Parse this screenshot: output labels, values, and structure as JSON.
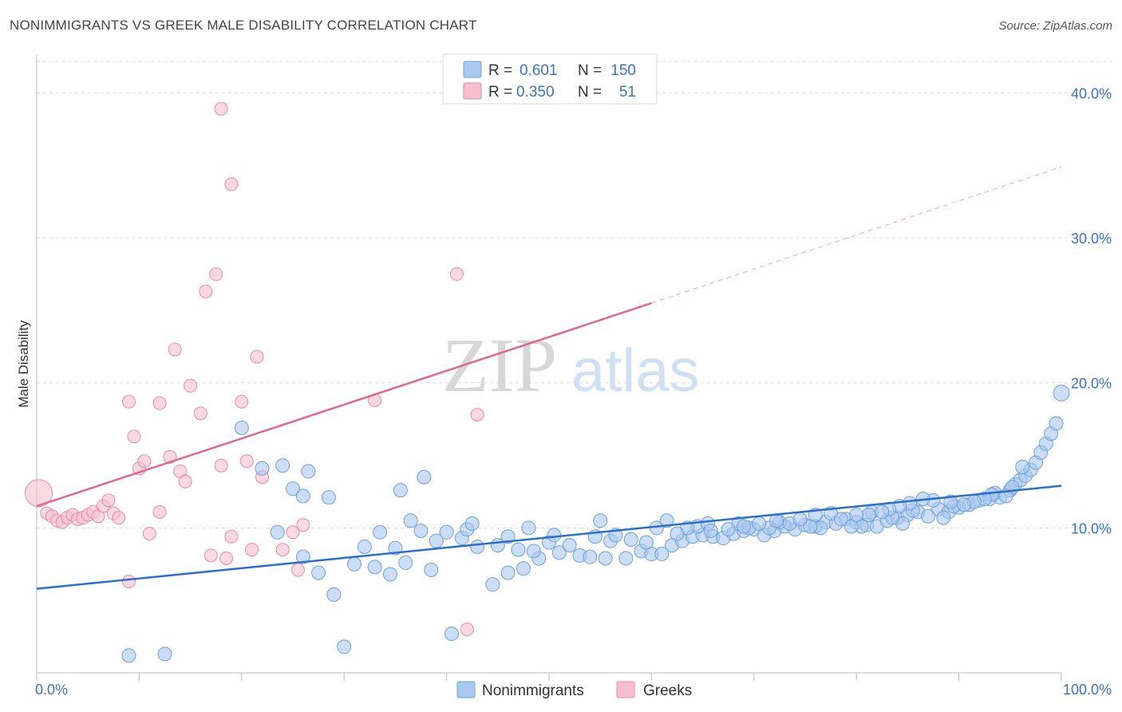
{
  "title": "NONIMMIGRANTS VS GREEK MALE DISABILITY CORRELATION CHART",
  "source": "Source: ZipAtlas.com",
  "watermark": {
    "zip": "ZIP",
    "atlas": "atlas"
  },
  "legend_top": [
    {
      "r_label": "R =",
      "r_value": "0.601",
      "n_label": "N =",
      "n_value": "150"
    },
    {
      "r_label": "R =",
      "r_value": "0.350",
      "n_label": "N =",
      "n_value": "51"
    }
  ],
  "colors": {
    "nonimmigrants_fill": "#a9c8ef",
    "nonimmigrants_stroke": "#6f9fd8",
    "nonimmigrants_line": "#2a6fcc",
    "greeks_fill": "#f6bfd0",
    "greeks_stroke": "#e68aa6",
    "greeks_line": "#e06690",
    "tick_text": "#3b74c4",
    "grid": "#dcdcdc"
  },
  "chart_data": {
    "type": "scatter",
    "title": "NONIMMIGRANTS VS GREEK MALE DISABILITY CORRELATION CHART",
    "xlabel": "",
    "ylabel": "Male Disability",
    "xlim": [
      0,
      100
    ],
    "ylim": [
      0,
      42
    ],
    "x_tick_labels": [
      "0.0%",
      "100.0%"
    ],
    "y_ticks": [
      10,
      20,
      30,
      40
    ],
    "y_tick_labels": [
      "10.0%",
      "20.0%",
      "30.0%",
      "40.0%"
    ],
    "grid": "horizontal dashed",
    "legend_position": "bottom-center",
    "series": [
      {
        "name": "Nonimmigrants",
        "color": "#a9c8ef",
        "r": 0.601,
        "n": 150,
        "trend": {
          "x": [
            0,
            100
          ],
          "y": [
            5.8,
            12.9
          ],
          "style": "solid"
        },
        "points": [
          [
            9,
            1.2
          ],
          [
            12.5,
            1.3
          ],
          [
            30,
            1.8
          ],
          [
            40.5,
            2.7
          ],
          [
            29,
            5.4
          ],
          [
            44.5,
            6.1
          ],
          [
            27.5,
            6.9
          ],
          [
            34.5,
            6.8
          ],
          [
            38.5,
            7.1
          ],
          [
            31,
            7.5
          ],
          [
            33,
            7.3
          ],
          [
            36,
            7.6
          ],
          [
            46,
            6.9
          ],
          [
            47.5,
            7.2
          ],
          [
            49,
            7.9
          ],
          [
            48.5,
            8.4
          ],
          [
            47,
            8.5
          ],
          [
            51,
            8.3
          ],
          [
            53,
            8.1
          ],
          [
            54,
            8.0
          ],
          [
            55.5,
            7.9
          ],
          [
            57.5,
            7.9
          ],
          [
            59,
            8.4
          ],
          [
            60,
            8.2
          ],
          [
            61,
            8.2
          ],
          [
            26,
            8.0
          ],
          [
            32,
            8.7
          ],
          [
            35,
            8.6
          ],
          [
            39,
            9.1
          ],
          [
            41.5,
            9.3
          ],
          [
            43,
            8.7
          ],
          [
            45,
            8.8
          ],
          [
            50,
            9.0
          ],
          [
            52,
            8.8
          ],
          [
            54.5,
            9.4
          ],
          [
            56,
            9.1
          ],
          [
            58,
            9.2
          ],
          [
            62,
            8.8
          ],
          [
            63,
            9.1
          ],
          [
            64,
            9.4
          ],
          [
            65,
            9.5
          ],
          [
            66,
            9.4
          ],
          [
            67,
            9.3
          ],
          [
            68,
            9.6
          ],
          [
            69,
            9.8
          ],
          [
            70,
            9.9
          ],
          [
            71,
            9.5
          ],
          [
            72,
            9.8
          ],
          [
            73,
            10.1
          ],
          [
            74,
            9.9
          ],
          [
            75,
            10.2
          ],
          [
            76,
            10.1
          ],
          [
            77,
            10.4
          ],
          [
            78,
            10.3
          ],
          [
            79,
            10.6
          ],
          [
            80,
            10.4
          ],
          [
            81,
            10.2
          ],
          [
            82,
            10.1
          ],
          [
            83,
            10.5
          ],
          [
            84,
            10.7
          ],
          [
            85,
            10.9
          ],
          [
            86,
            11.1
          ],
          [
            87,
            10.8
          ],
          [
            88,
            11.3
          ],
          [
            89,
            11.1
          ],
          [
            90,
            11.4
          ],
          [
            91,
            11.6
          ],
          [
            92,
            11.9
          ],
          [
            93,
            12.0
          ],
          [
            94,
            12.1
          ],
          [
            37.5,
            9.8
          ],
          [
            40,
            9.7
          ],
          [
            42,
            9.9
          ],
          [
            33.5,
            9.7
          ],
          [
            48,
            10.0
          ],
          [
            56.5,
            9.5
          ],
          [
            60.5,
            10.0
          ],
          [
            64.5,
            10.1
          ],
          [
            68.5,
            10.3
          ],
          [
            72.5,
            10.4
          ],
          [
            76.5,
            10.0
          ],
          [
            80.5,
            10.1
          ],
          [
            84.5,
            10.3
          ],
          [
            88.5,
            10.7
          ],
          [
            63.5,
            10.0
          ],
          [
            67.5,
            9.9
          ],
          [
            71.5,
            10.0
          ],
          [
            75.5,
            10.1
          ],
          [
            79.5,
            10.1
          ],
          [
            83.5,
            10.7
          ],
          [
            36.5,
            10.5
          ],
          [
            42.5,
            10.3
          ],
          [
            46,
            9.4
          ],
          [
            50.5,
            9.5
          ],
          [
            55,
            10.5
          ],
          [
            61.5,
            10.5
          ],
          [
            65.5,
            10.3
          ],
          [
            69.5,
            10.0
          ],
          [
            73.5,
            10.3
          ],
          [
            77.5,
            11.0
          ],
          [
            81.5,
            11.1
          ],
          [
            85.5,
            11.2
          ],
          [
            89.5,
            11.5
          ],
          [
            93.5,
            12.4
          ],
          [
            95,
            12.6
          ],
          [
            95.5,
            13.0
          ],
          [
            96,
            13.3
          ],
          [
            96.5,
            13.6
          ],
          [
            97,
            14.0
          ],
          [
            97.5,
            14.5
          ],
          [
            98,
            15.2
          ],
          [
            98.5,
            15.8
          ],
          [
            99,
            16.5
          ],
          [
            99.5,
            17.2
          ],
          [
            100,
            19.3
          ],
          [
            96.2,
            14.2
          ],
          [
            95.2,
            12.8
          ],
          [
            94.6,
            12.2
          ],
          [
            93.2,
            12.3
          ],
          [
            92.5,
            12.0
          ],
          [
            91.5,
            11.8
          ],
          [
            90.5,
            11.6
          ],
          [
            89.2,
            11.8
          ],
          [
            87.5,
            11.9
          ],
          [
            86.5,
            12.0
          ],
          [
            85.2,
            11.7
          ],
          [
            84.2,
            11.5
          ],
          [
            83.2,
            11.3
          ],
          [
            82.5,
            11.1
          ],
          [
            81.2,
            10.9
          ],
          [
            80,
            10.9
          ],
          [
            78.5,
            10.6
          ],
          [
            76,
            10.9
          ],
          [
            74.5,
            10.6
          ],
          [
            72.2,
            10.5
          ],
          [
            70.5,
            10.3
          ],
          [
            69,
            10.1
          ],
          [
            65.8,
            9.8
          ],
          [
            62.5,
            9.6
          ],
          [
            59.5,
            9.0
          ],
          [
            20,
            16.9
          ],
          [
            22,
            14.1
          ],
          [
            24,
            14.3
          ],
          [
            25,
            12.7
          ],
          [
            26.5,
            13.9
          ],
          [
            28.5,
            12.1
          ],
          [
            35.5,
            12.6
          ],
          [
            37.8,
            13.5
          ],
          [
            26,
            12.2
          ],
          [
            23.5,
            9.7
          ]
        ]
      },
      {
        "name": "Greeks",
        "color": "#f6bfd0",
        "r": 0.35,
        "n": 51,
        "trend": {
          "x": [
            0,
            60
          ],
          "y": [
            11.5,
            25.5
          ],
          "style": "solid",
          "extension": {
            "x": [
              60,
              100
            ],
            "y": [
              25.5,
              34.9
            ],
            "style": "dashed"
          }
        },
        "points": [
          [
            0.2,
            12.4
          ],
          [
            1,
            11.0
          ],
          [
            1.5,
            10.8
          ],
          [
            2,
            10.5
          ],
          [
            2.5,
            10.4
          ],
          [
            3,
            10.7
          ],
          [
            3.5,
            10.9
          ],
          [
            4,
            10.6
          ],
          [
            4.5,
            10.7
          ],
          [
            5,
            10.9
          ],
          [
            5.5,
            11.1
          ],
          [
            6,
            10.8
          ],
          [
            6.5,
            11.5
          ],
          [
            7,
            11.9
          ],
          [
            7.5,
            11.0
          ],
          [
            8,
            10.7
          ],
          [
            9,
            18.7
          ],
          [
            9.5,
            16.3
          ],
          [
            10,
            14.1
          ],
          [
            10.5,
            14.6
          ],
          [
            12,
            18.6
          ],
          [
            13,
            14.9
          ],
          [
            13.5,
            22.3
          ],
          [
            14,
            13.9
          ],
          [
            14.5,
            13.2
          ],
          [
            15,
            19.8
          ],
          [
            16,
            17.9
          ],
          [
            17,
            8.1
          ],
          [
            18,
            14.3
          ],
          [
            17.5,
            27.5
          ],
          [
            16.5,
            26.3
          ],
          [
            18.5,
            7.9
          ],
          [
            19,
            9.4
          ],
          [
            20,
            18.7
          ],
          [
            21,
            8.5
          ],
          [
            18,
            38.9
          ],
          [
            19,
            33.7
          ],
          [
            20.5,
            14.6
          ],
          [
            21.5,
            21.8
          ],
          [
            22,
            13.5
          ],
          [
            24,
            8.5
          ],
          [
            25,
            9.7
          ],
          [
            25.5,
            7.1
          ],
          [
            26,
            10.2
          ],
          [
            33,
            18.8
          ],
          [
            41,
            27.5
          ],
          [
            43,
            17.8
          ],
          [
            42,
            3.0
          ],
          [
            9,
            6.3
          ],
          [
            11,
            9.6
          ],
          [
            12,
            11.1
          ]
        ]
      }
    ]
  },
  "bottom_legend": [
    {
      "label": "Nonimmigrants"
    },
    {
      "label": "Greeks"
    }
  ]
}
